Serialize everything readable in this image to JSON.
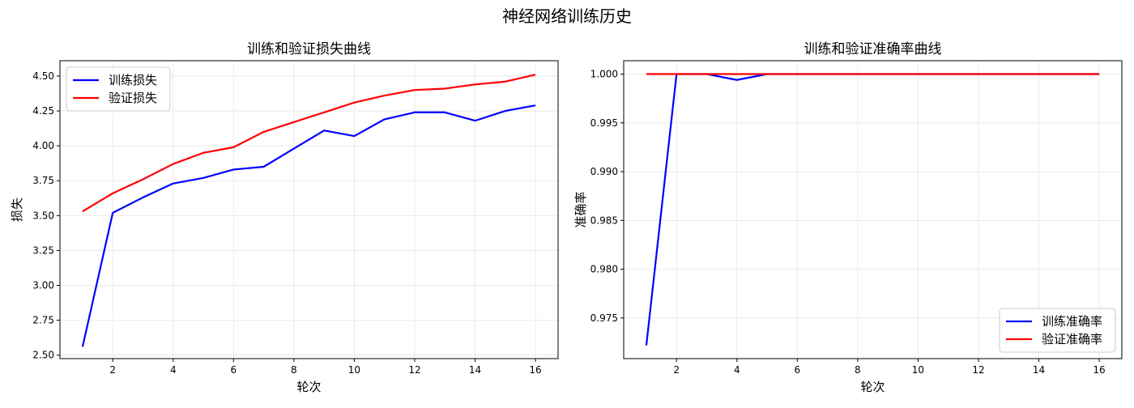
{
  "figure": {
    "suptitle": "神经网络训练历史"
  },
  "chart_data": [
    {
      "type": "line",
      "title": "训练和验证损失曲线",
      "xlabel": "轮次",
      "ylabel": "损失",
      "x": [
        1,
        2,
        3,
        4,
        5,
        6,
        7,
        8,
        9,
        10,
        11,
        12,
        13,
        14,
        15,
        16
      ],
      "xlim": [
        0.25,
        16.75
      ],
      "ylim": [
        2.475,
        4.61
      ],
      "xticks": [
        2,
        4,
        6,
        8,
        10,
        12,
        14,
        16
      ],
      "yticks": [
        2.5,
        2.75,
        3.0,
        3.25,
        3.5,
        3.75,
        4.0,
        4.25,
        4.5
      ],
      "ytick_labels": [
        "2.50",
        "2.75",
        "3.00",
        "3.25",
        "3.50",
        "3.75",
        "4.00",
        "4.25",
        "4.50"
      ],
      "grid": true,
      "legend_position": "top-left",
      "series": [
        {
          "name": "训练损失",
          "color": "#0000ff",
          "values": [
            2.56,
            3.52,
            3.63,
            3.73,
            3.77,
            3.83,
            3.85,
            3.98,
            4.11,
            4.07,
            4.19,
            4.24,
            4.24,
            4.18,
            4.25,
            4.29
          ]
        },
        {
          "name": "验证损失",
          "color": "#ff0000",
          "values": [
            3.53,
            3.66,
            3.76,
            3.87,
            3.95,
            3.99,
            4.1,
            4.17,
            4.24,
            4.31,
            4.36,
            4.4,
            4.41,
            4.44,
            4.46,
            4.51
          ]
        }
      ]
    },
    {
      "type": "line",
      "title": "训练和验证准确率曲线",
      "xlabel": "轮次",
      "ylabel": "准确率",
      "x": [
        1,
        2,
        3,
        4,
        5,
        6,
        7,
        8,
        9,
        10,
        11,
        12,
        13,
        14,
        15,
        16
      ],
      "xlim": [
        0.25,
        16.75
      ],
      "ylim": [
        0.97084,
        1.00137
      ],
      "xticks": [
        2,
        4,
        6,
        8,
        10,
        12,
        14,
        16
      ],
      "yticks": [
        0.975,
        0.98,
        0.985,
        0.99,
        0.995,
        1.0
      ],
      "ytick_labels": [
        "0.975",
        "0.980",
        "0.985",
        "0.990",
        "0.995",
        "1.000"
      ],
      "grid": true,
      "legend_position": "bottom-right",
      "series": [
        {
          "name": "训练准确率",
          "color": "#0000ff",
          "values": [
            0.9722,
            1.0,
            1.0,
            0.9994,
            1.0,
            1.0,
            1.0,
            1.0,
            1.0,
            1.0,
            1.0,
            1.0,
            1.0,
            1.0,
            1.0,
            1.0
          ]
        },
        {
          "name": "验证准确率",
          "color": "#ff0000",
          "values": [
            1.0,
            1.0,
            1.0,
            1.0,
            1.0,
            1.0,
            1.0,
            1.0,
            1.0,
            1.0,
            1.0,
            1.0,
            1.0,
            1.0,
            1.0,
            1.0
          ]
        }
      ]
    }
  ]
}
